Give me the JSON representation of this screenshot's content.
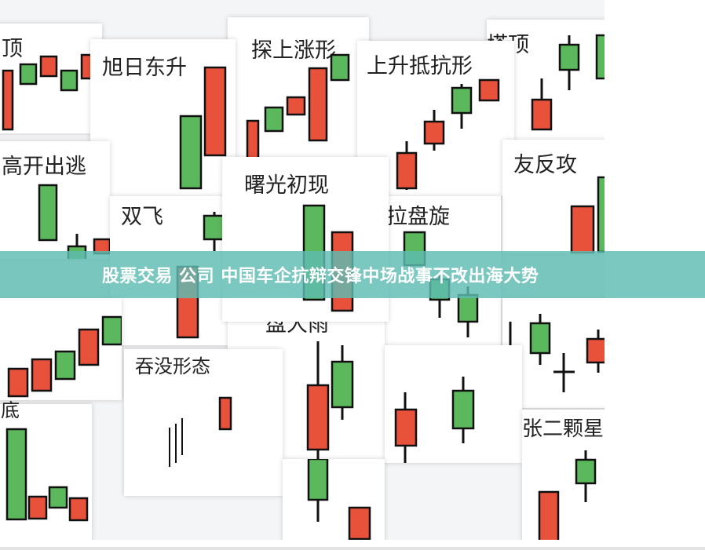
{
  "image": {
    "card_labels": [
      "顶",
      "旭日东升",
      "探上涨形",
      "上升抵抗形",
      "塔顶",
      "高开出逃",
      "曙光初现",
      "双飞",
      "友反攻",
      "拉盘旋",
      "盘大雨",
      "吞没形态",
      "张二颗星",
      "底"
    ],
    "colors": {
      "bull": "#5cb85c",
      "bear": "#e8513a",
      "banner": "#5ebcb2"
    }
  },
  "banner": {
    "title": "股票交易 公司 中国车企抗辩交锋中场战事不改出海大势"
  }
}
